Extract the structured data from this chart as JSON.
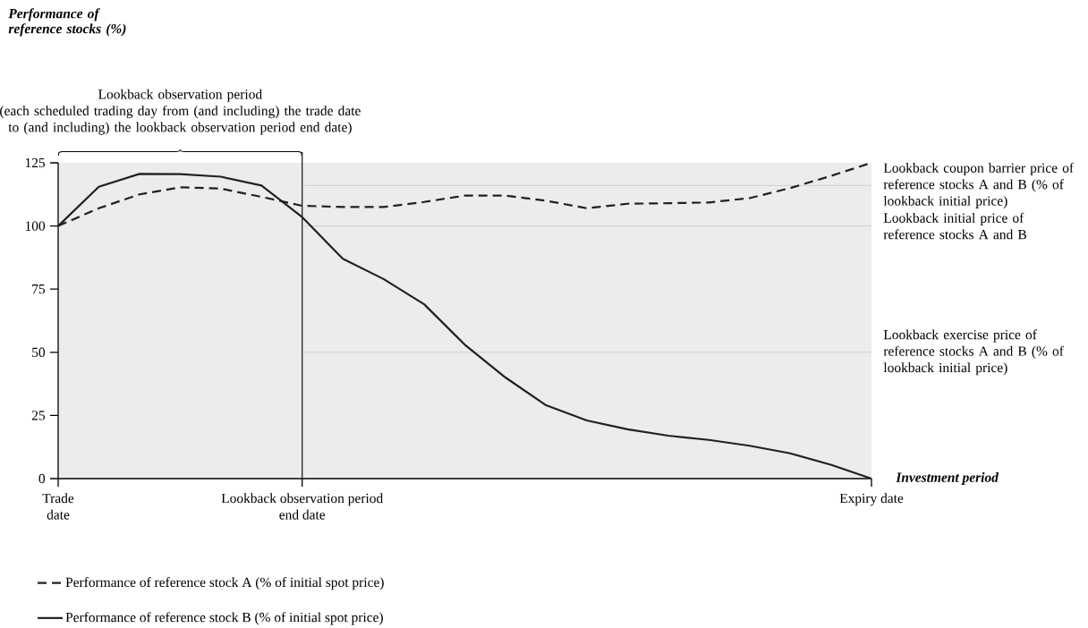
{
  "chart_data": {
    "type": "line",
    "xlabel": "Investment period",
    "categories": [
      "Trade date",
      null,
      null,
      null,
      null,
      null,
      "Lookback observation period end date",
      null,
      null,
      null,
      null,
      null,
      null,
      null,
      null,
      null,
      null,
      null,
      null,
      null,
      "Expiry date"
    ],
    "ylim": [
      0,
      125
    ],
    "yticks": [
      0,
      25,
      50,
      75,
      100,
      125
    ],
    "series": [
      {
        "name": "Performance of reference stock A (% of initial spot price)",
        "color": "#231f20",
        "line_style": "dashed",
        "values": [
          100,
          107,
          112.5,
          115.3,
          114.8,
          111.5,
          108,
          107.5,
          107.5,
          109.5,
          112,
          112,
          110,
          107,
          108.8,
          109,
          109.3,
          111,
          115,
          119.8,
          125
        ]
      },
      {
        "name": "Performance of reference stock B (% of initial spot price)",
        "color": "#231f20",
        "line_style": "solid",
        "values": [
          100,
          115.5,
          120.6,
          120.5,
          119.5,
          116,
          103.5,
          87,
          79,
          69,
          53,
          40,
          29,
          23,
          19.5,
          17,
          15.3,
          13,
          10,
          5.5,
          0
        ]
      }
    ],
    "ref_lines": [
      {
        "axis": "x",
        "value": "Lookback observation period end date",
        "color": "#231f20"
      },
      {
        "axis": "y",
        "value": 116,
        "color": "#c8c8c8",
        "label": "Lookback coupon barrier price of reference stocks A and B (% of lookback initial price)"
      },
      {
        "axis": "y",
        "value": 100,
        "color": "#c8c8c8",
        "label": "Lookback initial price of reference stocks A and B"
      },
      {
        "axis": "y",
        "value": 50,
        "color": "#c8c8c8",
        "label": "Lookback exercise price of reference stocks A and B (% of lookback initial price)"
      }
    ],
    "annotations": [
      "Performance of reference stocks (%)",
      "Lookback observation period",
      "(each scheduled trading day from (and including) the trade date to (and including) the lookback observation period end date)"
    ],
    "legend": "bottom left",
    "grid": false
  }
}
